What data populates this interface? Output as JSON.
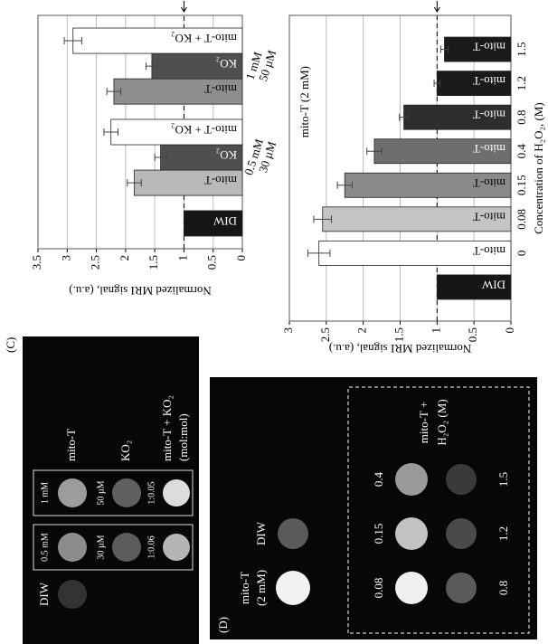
{
  "chart_data": [
    {
      "type": "bar",
      "ylabel": "Normalized MRI signal, (a.u.)",
      "categories": [
        "DIW",
        "mito-T",
        "KO₂",
        "mito-T + KO₂",
        "mito-T",
        "KO₂",
        "mito-T + KO₂"
      ],
      "groups": [
        [
          "0.5 mM",
          "30 µM"
        ],
        [
          "1 mM",
          "50 µM"
        ]
      ],
      "values": [
        1,
        1.85,
        1.4,
        2.25,
        2.2,
        1.55,
        2.9
      ],
      "errors": [
        null,
        0.12,
        0.1,
        0.12,
        0.12,
        0.1,
        0.15
      ],
      "colors": [
        "#161616",
        "#b9b9b9",
        "#4f4f4f",
        "#ffffff",
        "#8e8e8e",
        "#4f4f4f",
        "#ffffff"
      ],
      "ylim": [
        0,
        3.5
      ],
      "yticks": [
        0,
        0.5,
        1,
        1.5,
        2,
        2.5,
        3,
        3.5
      ],
      "grid": true,
      "reference_line": 1
    },
    {
      "type": "bar",
      "ylabel": "Normalized MRI signal, (a.u.)",
      "xlabel": "Concentration of H₂O₂, (M)",
      "annotation": "mito-T (2 mM)",
      "categories": [
        null,
        "0",
        "0.08",
        "0.15",
        "0.4",
        "0.8",
        "1.2",
        "1.5"
      ],
      "bar_labels": [
        "DIW",
        "mito-T",
        "mito-T",
        "mito-T",
        "mito-T",
        "mito-T",
        "mito-T",
        "mito-T"
      ],
      "values": [
        1,
        2.6,
        2.55,
        2.25,
        1.85,
        1.45,
        1.0,
        0.9
      ],
      "errors": [
        null,
        0.15,
        0.12,
        0.1,
        0.1,
        0.06,
        0.04,
        0.05
      ],
      "colors": [
        "#161616",
        "#ffffff",
        "#c4c4c4",
        "#8a8a8a",
        "#6e6e6e",
        "#2e2e2e",
        "#1a1a1a",
        "#1a1a1a"
      ],
      "ylim": [
        0,
        3
      ],
      "yticks": [
        0,
        0.5,
        1,
        1.5,
        2,
        2.5,
        3
      ],
      "grid": true,
      "reference_line": 1
    }
  ],
  "image_c": {
    "label": "(C)",
    "column_labels": [
      "DIW",
      "0.5 mM",
      "1 mM"
    ],
    "row_labels": [
      "mito-T",
      "KO₂",
      "mito-T + KO₂",
      "(mol:mol)"
    ],
    "cell_labels": [
      "30 µM",
      "50 µM",
      "1:0.06",
      "1:0.05"
    ]
  },
  "image_d": {
    "label": "(D)",
    "labels": [
      "mito-T",
      "(2 mM)",
      "DIW"
    ],
    "conc_top": [
      "0.08",
      "0.15",
      "0.4"
    ],
    "conc_bottom": [
      "0.8",
      "1.2",
      "1.5"
    ],
    "box_label": [
      "mito-T +",
      "H₂O₂ (M)"
    ]
  }
}
